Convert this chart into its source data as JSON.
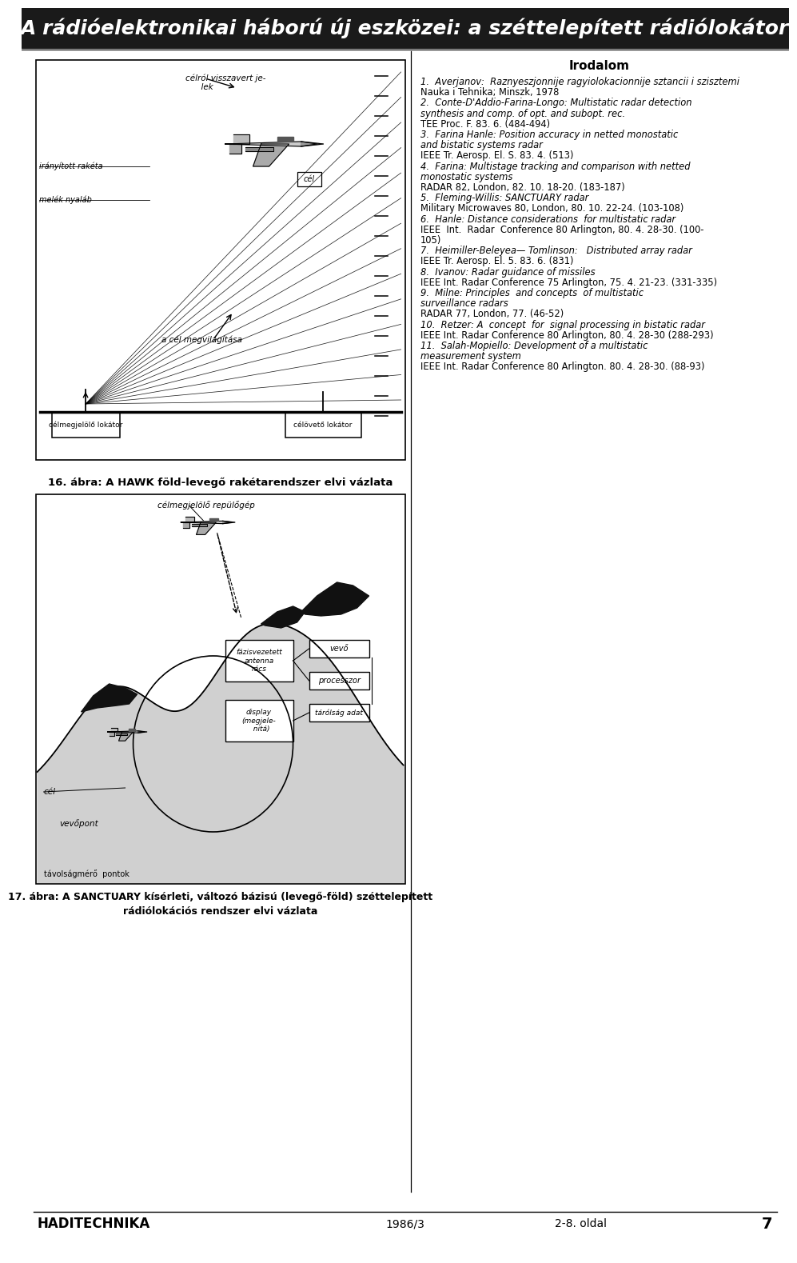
{
  "title": "A rádióelektronikai háború új eszközei: a széttelepített rádiólokátor",
  "title_fontsize": 18,
  "bg_color": "#ffffff",
  "footer_left": "HADITECHNIKA",
  "footer_center": "1986/3",
  "footer_right_left": "2-8. oldal",
  "footer_right_right": "7",
  "fig16_caption": "16. ábra: A HAWK föld-levegő rakétarendszer elvi vázlata",
  "fig17_caption_line1": "17. ábra: A SANCTUARY kísérleti, változó bázisú (levegő-föld) széttelepített",
  "fig17_caption_line2": "rádiólokációs rendszer elvi vázlata",
  "irodalom_title": "Irodalom",
  "ref_lines": [
    [
      true,
      "1.  Averjanov:  Raznyeszjonnije ragyiolokacionnije sztancii i szisztemi"
    ],
    [
      false,
      "Nauka i Tehnika; Minszk, 1978"
    ],
    [
      true,
      "2.  Conte-D'Addio-Farina-Longo: Multistatic radar detection"
    ],
    [
      true,
      "synthesis and comp. of opt. and subopt. rec."
    ],
    [
      false,
      "TEE Proc. F. 83. 6. (484-494)"
    ],
    [
      true,
      "3.  Farina Hanle: Position accuracy in netted monostatic"
    ],
    [
      true,
      "and bistatic systems radar"
    ],
    [
      false,
      "IEEE Tr. Aerosp. El. S. 83. 4. (513)"
    ],
    [
      true,
      "4.  Farina: Multistage tracking and comparison with netted"
    ],
    [
      true,
      "monostatic systems"
    ],
    [
      false,
      "RADAR 82, London, 82. 10. 18-20. (183-187)"
    ],
    [
      true,
      "5.  Fleming-Willis: SANCTUARY radar"
    ],
    [
      false,
      "Military Microwaves 80, London, 80. 10. 22-24. (103-108)"
    ],
    [
      true,
      "6.  Hanle: Distance considerations  for multistatic radar"
    ],
    [
      false,
      "IEEE  Int.  Radar  Conference 80 Arlington, 80. 4. 28-30. (100-"
    ],
    [
      false,
      "105)"
    ],
    [
      true,
      "7.  Heimiller-Beleyea— Tomlinson:   Distributed array radar"
    ],
    [
      false,
      "IEEE Tr. Aerosp. El. 5. 83. 6. (831)"
    ],
    [
      true,
      "8.  Ivanov: Radar guidance of missiles"
    ],
    [
      false,
      "IEEE Int. Radar Conference 75 Arlington, 75. 4. 21-23. (331-335)"
    ],
    [
      true,
      "9.  Milne: Principles  and concepts  of multistatic"
    ],
    [
      true,
      "surveillance radars"
    ],
    [
      false,
      "RADAR 77, London, 77. (46-52)"
    ],
    [
      true,
      "10.  Retzer: A  concept  for  signal processing in bistatic radar"
    ],
    [
      false,
      "IEEE Int. Radar Conference 80 Arlington, 80. 4. 28-30 (288-293)"
    ],
    [
      true,
      "11.  Salah-Mopiello: Development of a multistatic"
    ],
    [
      true,
      "measurement system"
    ],
    [
      false,
      "IEEE Int. Radar Conference 80 Arlington. 80. 4. 28-30. (88-93)"
    ]
  ],
  "fig16_labels": {
    "top_label": "célról visszavert je-\n      lek",
    "left_label1": "irányított rakéta",
    "left_label2": "melék nyaláb",
    "cel_label": "cél",
    "beam_label": "a cél megvilágítása",
    "box_left": "célmegjelölő lokátor",
    "box_right": "célövető lokátor"
  },
  "fig17_labels": {
    "top_label": "célmegjelölő repülőgép",
    "cel_label": "cél",
    "vevopont": "vevőpont",
    "tavolsag": "távolságmérő  pontok",
    "fazis": "fázisvezetett\nantenna\nrács",
    "vevo": "vevő",
    "processor": "processzor",
    "tarolsag": "tárólság adat",
    "display": "display\n(megjele-\n  nitá)"
  }
}
